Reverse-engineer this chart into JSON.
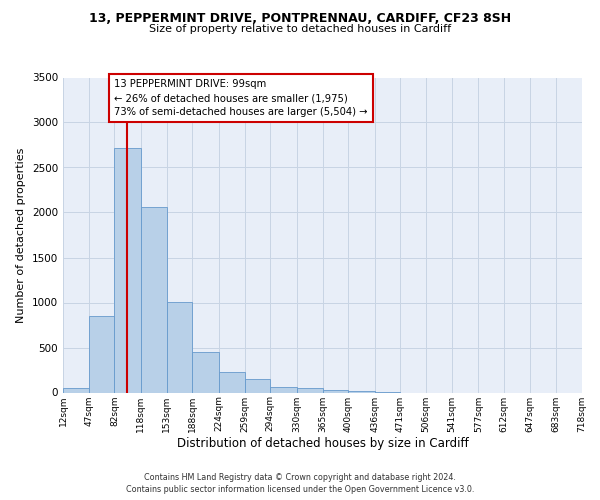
{
  "title": "13, PEPPERMINT DRIVE, PONTPRENNAU, CARDIFF, CF23 8SH",
  "subtitle": "Size of property relative to detached houses in Cardiff",
  "xlabel": "Distribution of detached houses by size in Cardiff",
  "ylabel": "Number of detached properties",
  "bar_color": "#b8d0e8",
  "bar_edge_color": "#6699cc",
  "bg_color": "#e8eef8",
  "grid_color": "#c8d4e4",
  "vline_x": 99,
  "vline_color": "#cc0000",
  "annotation_lines": [
    "13 PEPPERMINT DRIVE: 99sqm",
    "← 26% of detached houses are smaller (1,975)",
    "73% of semi-detached houses are larger (5,504) →"
  ],
  "annotation_box_edge": "#cc0000",
  "bin_edges": [
    12,
    47,
    82,
    118,
    153,
    188,
    224,
    259,
    294,
    330,
    365,
    400,
    436,
    471,
    506,
    541,
    577,
    612,
    647,
    683,
    718
  ],
  "bar_heights": [
    55,
    850,
    2720,
    2065,
    1005,
    455,
    225,
    150,
    65,
    55,
    30,
    20,
    10,
    0,
    0,
    0,
    0,
    0,
    0,
    0
  ],
  "tick_labels": [
    "12sqm",
    "47sqm",
    "82sqm",
    "118sqm",
    "153sqm",
    "188sqm",
    "224sqm",
    "259sqm",
    "294sqm",
    "330sqm",
    "365sqm",
    "400sqm",
    "436sqm",
    "471sqm",
    "506sqm",
    "541sqm",
    "577sqm",
    "612sqm",
    "647sqm",
    "683sqm",
    "718sqm"
  ],
  "ylim": [
    0,
    3500
  ],
  "yticks": [
    0,
    500,
    1000,
    1500,
    2000,
    2500,
    3000,
    3500
  ],
  "footer_lines": [
    "Contains HM Land Registry data © Crown copyright and database right 2024.",
    "Contains public sector information licensed under the Open Government Licence v3.0."
  ]
}
